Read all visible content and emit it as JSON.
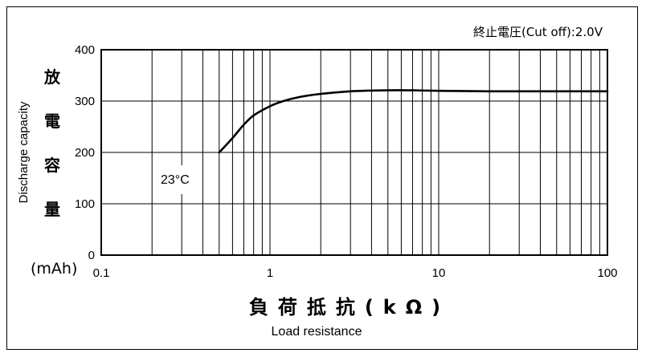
{
  "chart_data": {
    "type": "line",
    "title": "",
    "condition": "終止電圧(Cut off):2.0V",
    "ylabel_jp": [
      "放",
      "電",
      "容",
      "量"
    ],
    "ylabel_en": "Discharge capacity",
    "yunit": "(mAh)",
    "xlabel_jp": "負荷抵抗(kΩ)",
    "xlabel_en": "Load resistance",
    "xscale": "log",
    "xlim": [
      0.1,
      100
    ],
    "ylim": [
      0,
      400
    ],
    "xticks": [
      "0.1",
      "1",
      "10",
      "100"
    ],
    "yticks": [
      "0",
      "100",
      "200",
      "300",
      "400"
    ],
    "grid": true,
    "annotation": "23°C",
    "series": [
      {
        "x": [
          0.5,
          0.6,
          0.7,
          0.8,
          1.0,
          1.2,
          1.5,
          2,
          3,
          5,
          7,
          10,
          20,
          50,
          100
        ],
        "y": [
          200,
          228,
          254,
          272,
          290,
          300,
          308,
          314,
          319,
          321,
          321,
          320,
          319,
          319,
          319
        ]
      }
    ]
  }
}
